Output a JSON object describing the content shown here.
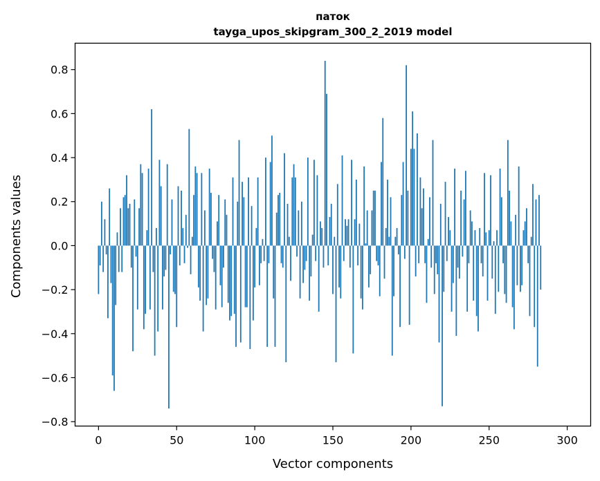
{
  "chart_data": {
    "type": "bar",
    "title_line1": "паток",
    "title_line2": "tayga_upos_skipgram_300_2_2019 model",
    "xlabel": "Vector components",
    "ylabel": "Components values",
    "xlim": [
      -15,
      315
    ],
    "ylim": [
      -0.82,
      0.92
    ],
    "x_ticks": [
      0,
      50,
      100,
      150,
      200,
      250,
      300
    ],
    "x_tick_labels": [
      "0",
      "50",
      "100",
      "150",
      "200",
      "250",
      "300"
    ],
    "y_ticks": [
      -0.8,
      -0.6,
      -0.4,
      -0.2,
      0.0,
      0.2,
      0.4,
      0.6,
      0.8
    ],
    "y_tick_labels": [
      "−0.8",
      "−0.6",
      "−0.4",
      "−0.2",
      "0.0",
      "0.2",
      "0.4",
      "0.6",
      "0.8"
    ],
    "grid": false,
    "bar_color": "#1f77b4",
    "values": [
      -0.22,
      -0.09,
      0.2,
      -0.12,
      0.12,
      -0.04,
      -0.33,
      0.26,
      -0.17,
      -0.59,
      -0.66,
      -0.27,
      0.06,
      -0.12,
      0.17,
      -0.12,
      0.22,
      0.23,
      0.32,
      0.17,
      0.19,
      -0.1,
      -0.48,
      0.21,
      -0.05,
      -0.29,
      0.17,
      0.37,
      0.33,
      -0.38,
      -0.31,
      0.07,
      0.35,
      -0.29,
      0.62,
      -0.12,
      -0.5,
      0.08,
      -0.39,
      0.39,
      0.27,
      -0.29,
      -0.14,
      -0.11,
      0.37,
      -0.74,
      -0.04,
      0.21,
      -0.21,
      -0.22,
      -0.37,
      0.27,
      -0.09,
      0.25,
      0.08,
      -0.08,
      0.14,
      -0.01,
      0.53,
      -0.13,
      0.04,
      0.23,
      0.36,
      0.33,
      -0.19,
      -0.25,
      0.33,
      -0.39,
      0.16,
      -0.27,
      -0.24,
      0.35,
      0.24,
      -0.06,
      -0.12,
      -0.29,
      0.11,
      0.23,
      -0.18,
      -0.28,
      -0.1,
      0.21,
      0.14,
      -0.26,
      -0.34,
      -0.32,
      0.31,
      -0.31,
      -0.46,
      0.2,
      0.48,
      -0.44,
      0.29,
      0.22,
      -0.28,
      -0.28,
      0.31,
      -0.47,
      0.18,
      -0.34,
      -0.19,
      0.08,
      0.31,
      -0.18,
      -0.08,
      0.03,
      -0.07,
      0.4,
      -0.46,
      -0.08,
      0.38,
      0.5,
      -0.24,
      -0.46,
      0.15,
      0.23,
      0.24,
      -0.08,
      -0.1,
      0.42,
      -0.53,
      0.19,
      0.04,
      -0.16,
      0.31,
      0.37,
      0.31,
      -0.05,
      0.16,
      -0.24,
      0.2,
      -0.17,
      -0.11,
      -0.07,
      0.4,
      -0.25,
      -0.14,
      0.05,
      0.39,
      -0.07,
      0.32,
      -0.3,
      0.11,
      0.08,
      -0.1,
      0.84,
      0.69,
      -0.09,
      0.13,
      0.19,
      -0.22,
      0.04,
      -0.53,
      0.28,
      -0.19,
      -0.24,
      0.41,
      -0.07,
      0.12,
      0.09,
      0.12,
      -0.1,
      0.39,
      -0.49,
      0.12,
      0.3,
      -0.09,
      0.1,
      -0.24,
      -0.29,
      0.36,
      0.01,
      0.16,
      -0.19,
      -0.13,
      0.16,
      0.25,
      0.25,
      -0.07,
      -0.09,
      -0.23,
      0.38,
      0.58,
      -0.15,
      0.08,
      0.3,
      0.04,
      0.22,
      -0.5,
      -0.23,
      0.04,
      0.08,
      -0.04,
      -0.37,
      0.23,
      0.38,
      -0.06,
      0.82,
      0.25,
      -0.36,
      0.44,
      0.61,
      0.44,
      -0.14,
      0.51,
      -0.08,
      0.31,
      0.17,
      0.26,
      -0.08,
      -0.26,
      0.03,
      0.22,
      -0.1,
      0.48,
      -0.22,
      -0.08,
      -0.13,
      -0.44,
      0.19,
      -0.73,
      -0.21,
      0.29,
      -0.07,
      0.13,
      0.07,
      -0.3,
      -0.17,
      0.35,
      -0.41,
      -0.1,
      -0.15,
      0.25,
      -0.05,
      0.21,
      0.34,
      -0.3,
      -0.08,
      0.16,
      0.11,
      -0.25,
      0.07,
      -0.32,
      -0.39,
      0.08,
      -0.08,
      -0.14,
      0.33,
      0.06,
      -0.25,
      0.07,
      0.32,
      -0.15,
      0.02,
      -0.31,
      0.07,
      -0.21,
      0.35,
      0.22,
      -0.08,
      -0.22,
      -0.26,
      0.48,
      0.25,
      0.11,
      -0.28,
      -0.38,
      0.14,
      -0.18,
      0.36,
      -0.21,
      -0.18,
      0.07,
      0.11,
      0.17,
      -0.08,
      -0.32,
      0.04,
      0.28,
      -0.37,
      0.21,
      -0.55,
      0.23,
      -0.2
    ]
  }
}
